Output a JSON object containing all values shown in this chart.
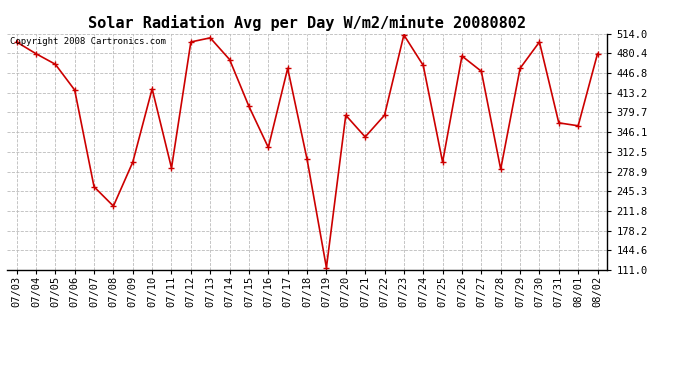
{
  "title": "Solar Radiation Avg per Day W/m2/minute 20080802",
  "copyright": "Copyright 2008 Cartronics.com",
  "dates": [
    "07/03",
    "07/04",
    "07/05",
    "07/06",
    "07/07",
    "07/08",
    "07/09",
    "07/10",
    "07/11",
    "07/12",
    "07/13",
    "07/14",
    "07/15",
    "07/16",
    "07/17",
    "07/18",
    "07/19",
    "07/20",
    "07/21",
    "07/22",
    "07/23",
    "07/24",
    "07/25",
    "07/26",
    "07/27",
    "07/28",
    "07/29",
    "07/30",
    "07/31",
    "08/01",
    "08/02"
  ],
  "values": [
    500,
    480,
    462,
    418,
    253,
    220,
    295,
    420,
    285,
    500,
    507,
    470,
    390,
    320,
    455,
    300,
    115,
    375,
    338,
    375,
    512,
    460,
    295,
    476,
    450,
    283,
    455,
    500,
    362,
    357,
    480
  ],
  "line_color": "#cc0000",
  "marker": "+",
  "marker_size": 5,
  "bg_color": "#ffffff",
  "grid_color": "#bbbbbb",
  "ylim_min": 111.0,
  "ylim_max": 514.0,
  "yticks": [
    111.0,
    144.6,
    178.2,
    211.8,
    245.3,
    278.9,
    312.5,
    346.1,
    379.7,
    413.2,
    446.8,
    480.4,
    514.0
  ],
  "title_fontsize": 11,
  "copyright_fontsize": 6.5,
  "tick_fontsize": 7.5
}
